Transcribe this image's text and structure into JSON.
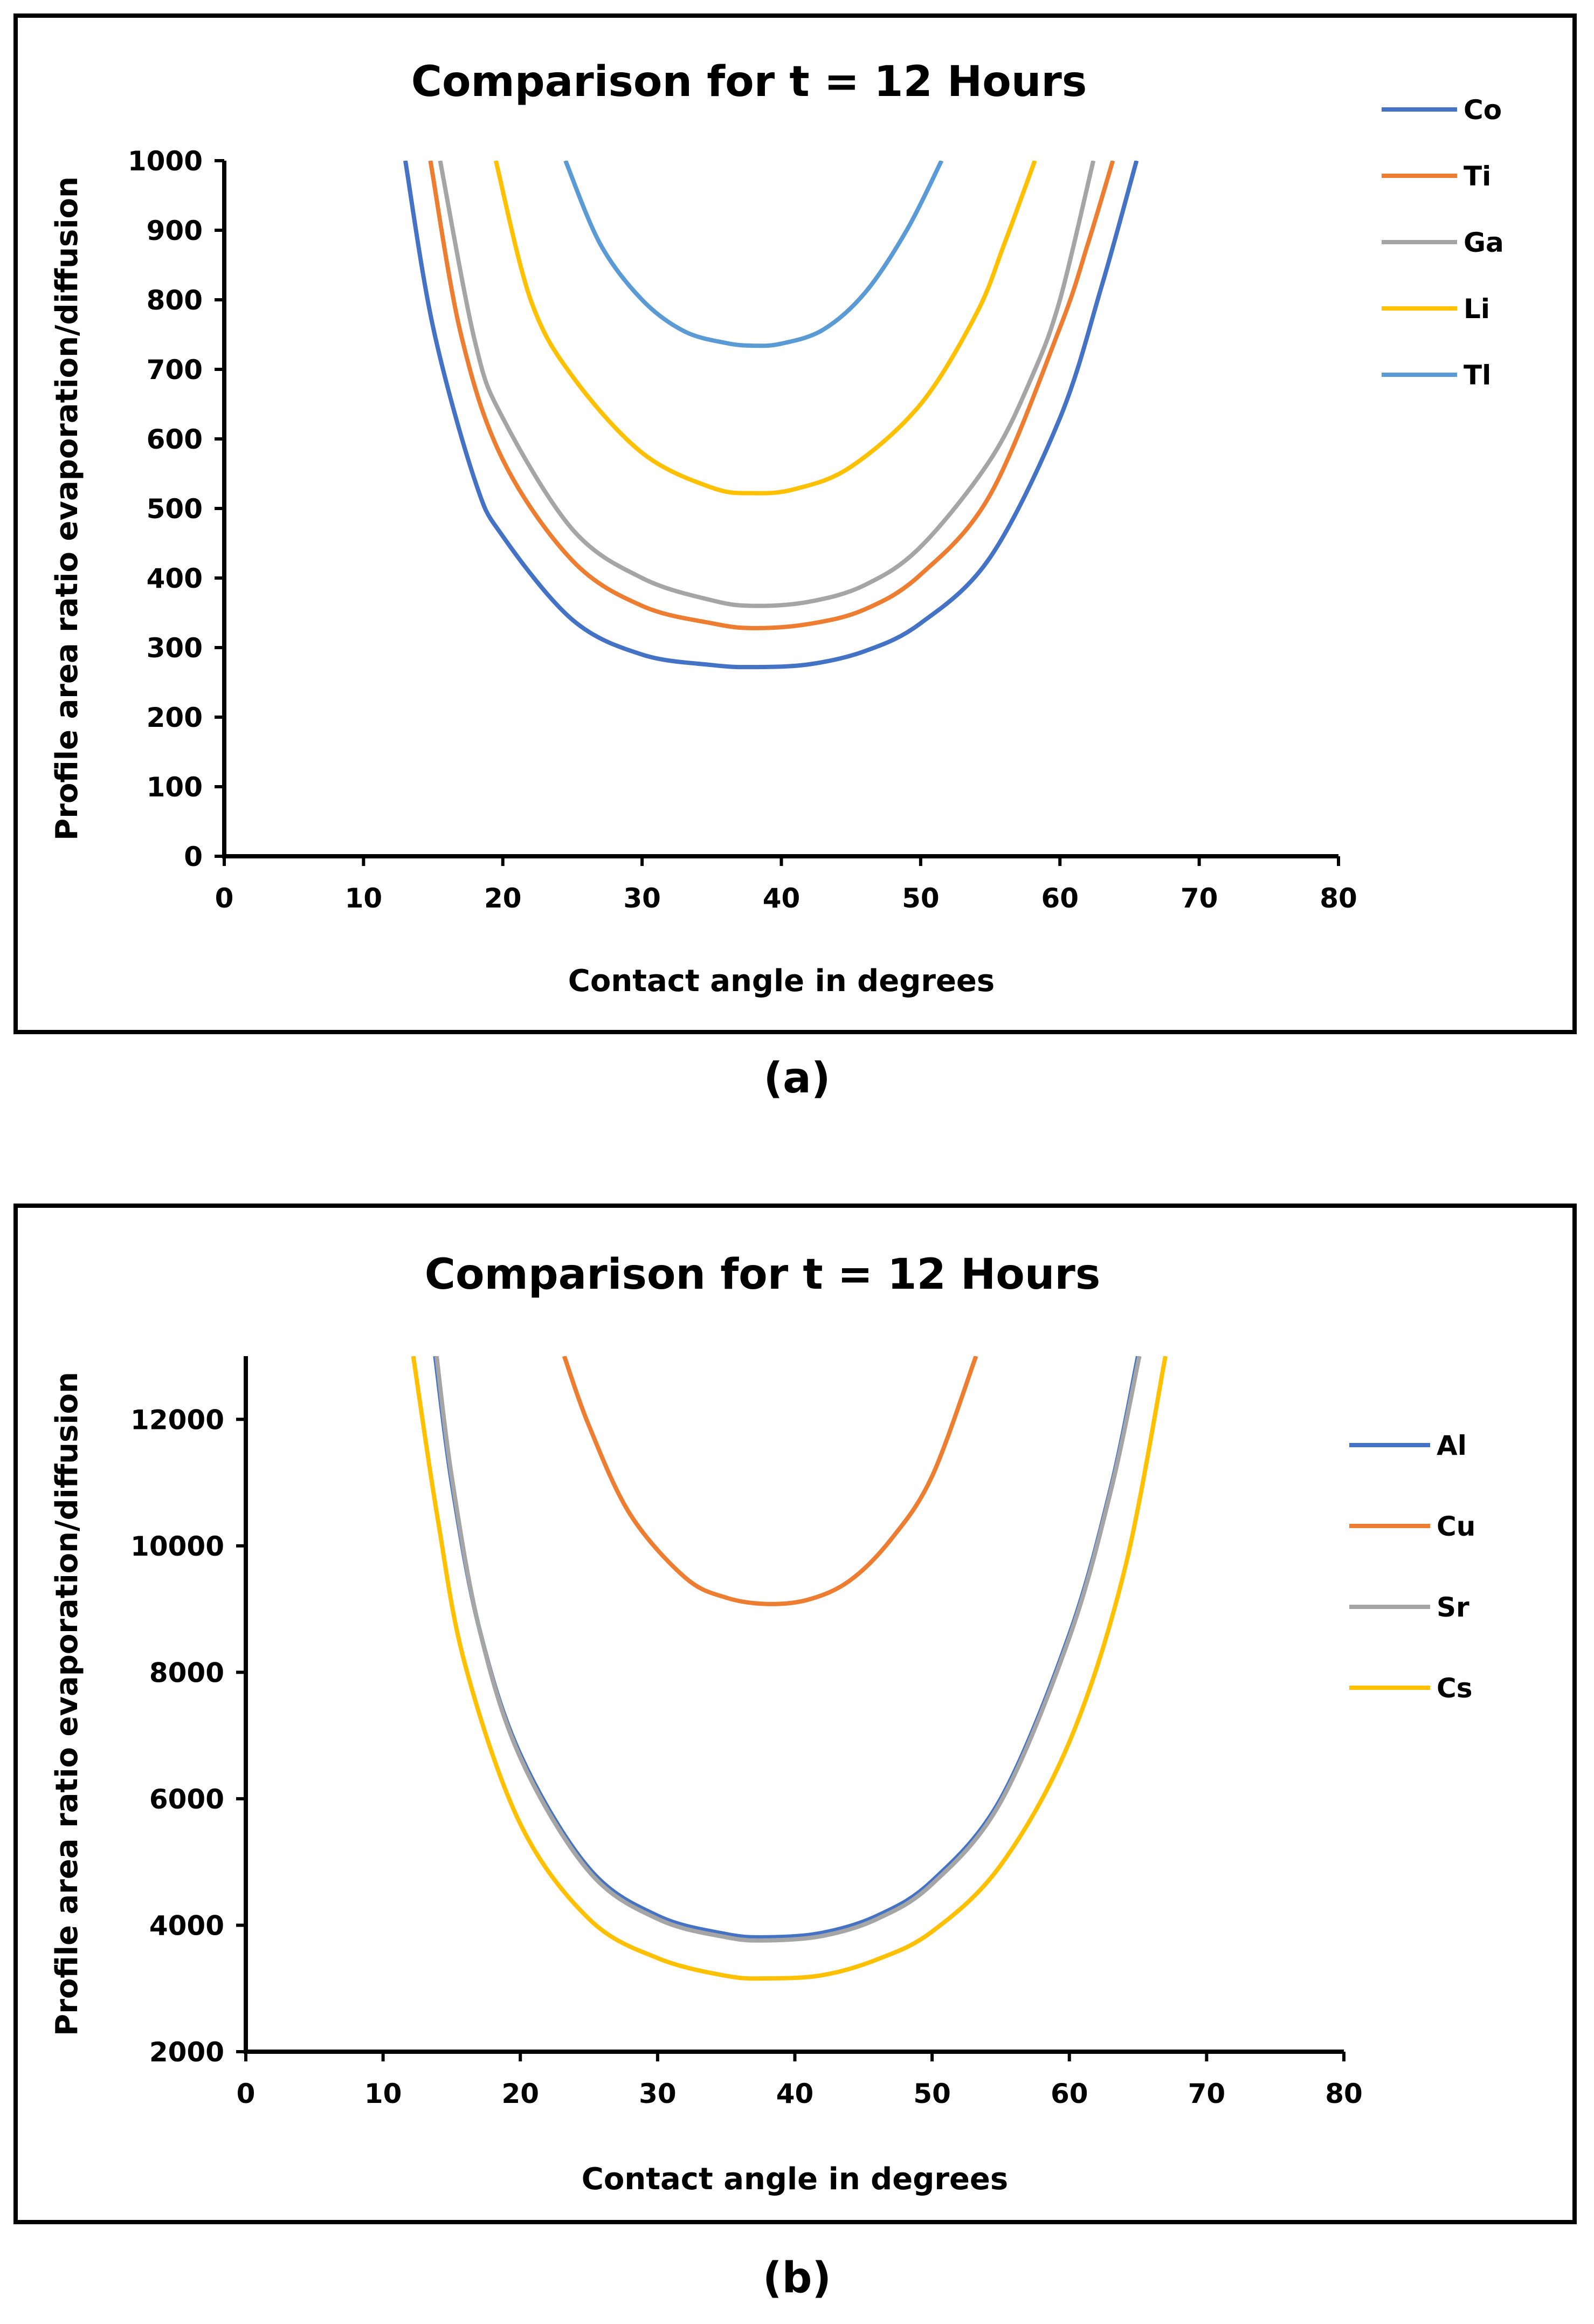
{
  "chart_data": [
    {
      "type": "line",
      "panel": "(a)",
      "title": "Comparison for t = 12 Hours",
      "xlabel": "Contact angle in degrees",
      "ylabel": "Profile area ratio evaporation/diffusion",
      "xlim": [
        0,
        80
      ],
      "ylim": [
        0,
        1000
      ],
      "xticks": [
        0,
        10,
        20,
        30,
        40,
        50,
        60,
        70,
        80
      ],
      "yticks": [
        0,
        100,
        200,
        300,
        400,
        500,
        600,
        700,
        800,
        900,
        1000
      ],
      "legend": "top-right",
      "grid": false,
      "series": [
        {
          "name": "Co",
          "color": "#4472C4",
          "x": [
            13,
            15,
            18,
            20,
            25,
            30,
            35,
            38,
            42,
            46,
            50,
            55,
            60,
            63,
            65.5
          ],
          "y": [
            1000,
            760,
            540,
            460,
            340,
            290,
            275,
            272,
            276,
            295,
            335,
            430,
            630,
            820,
            1000
          ]
        },
        {
          "name": "Ti",
          "color": "#ED7D31",
          "x": [
            14.8,
            17,
            20,
            25,
            30,
            35,
            38,
            42,
            46,
            50,
            55,
            60,
            62,
            63.8
          ],
          "y": [
            1000,
            750,
            570,
            425,
            360,
            335,
            328,
            334,
            355,
            405,
            520,
            760,
            880,
            1000
          ]
        },
        {
          "name": "Ga",
          "color": "#A5A5A5",
          "x": [
            15.5,
            18,
            20,
            25,
            30,
            35,
            38,
            42,
            46,
            50,
            55,
            58,
            60,
            62.4
          ],
          "y": [
            1000,
            740,
            630,
            470,
            400,
            368,
            360,
            366,
            390,
            445,
            570,
            690,
            800,
            1000
          ]
        },
        {
          "name": "Li",
          "color": "#FFC000",
          "x": [
            19.5,
            22,
            25,
            30,
            35,
            38,
            41,
            45,
            50,
            54,
            56,
            58.2
          ],
          "y": [
            1000,
            800,
            690,
            580,
            530,
            522,
            528,
            560,
            650,
            780,
            880,
            1000
          ]
        },
        {
          "name": "Tl",
          "color": "#5B9BD5",
          "x": [
            24.5,
            27,
            30,
            33,
            36,
            38,
            40,
            43,
            46,
            49,
            51.5
          ],
          "y": [
            1000,
            880,
            800,
            755,
            738,
            734,
            737,
            757,
            810,
            900,
            1000
          ]
        }
      ]
    },
    {
      "type": "line",
      "panel": "(b)",
      "title": "Comparison for t = 12 Hours",
      "xlabel": "Contact angle in degrees",
      "ylabel": "Profile area ratio evaporation/diffusion",
      "xlim": [
        0,
        80
      ],
      "ylim": [
        2000,
        13000
      ],
      "xticks": [
        0,
        10,
        20,
        30,
        40,
        50,
        60,
        70,
        80
      ],
      "yticks": [
        2000,
        4000,
        6000,
        8000,
        10000,
        12000
      ],
      "legend": "right",
      "grid": false,
      "series": [
        {
          "name": "Al",
          "color": "#4472C4",
          "x": [
            13.8,
            15,
            17,
            20,
            25,
            30,
            35,
            38,
            42,
            46,
            50,
            55,
            60,
            63,
            65
          ],
          "y": [
            13000,
            11000,
            8700,
            6700,
            4900,
            4150,
            3860,
            3810,
            3880,
            4150,
            4700,
            6000,
            8600,
            10900,
            13000
          ]
        },
        {
          "name": "Cu",
          "color": "#ED7D31",
          "x": [
            23.2,
            25,
            28,
            32,
            35,
            38,
            41,
            44,
            47,
            50,
            53.2
          ],
          "y": [
            13000,
            11900,
            10500,
            9500,
            9180,
            9080,
            9150,
            9450,
            10100,
            11100,
            13000
          ]
        },
        {
          "name": "Sr",
          "color": "#A5A5A5",
          "x": [
            13.9,
            15,
            17,
            20,
            25,
            30,
            35,
            38,
            42,
            46,
            50,
            55,
            60,
            63,
            65.1
          ],
          "y": [
            13000,
            11100,
            8700,
            6650,
            4850,
            4100,
            3810,
            3760,
            3830,
            4100,
            4650,
            5950,
            8550,
            10850,
            13000
          ]
        },
        {
          "name": "Cs",
          "color": "#FFC000",
          "x": [
            12.2,
            14,
            16,
            20,
            25,
            30,
            35,
            38,
            42,
            46,
            50,
            55,
            60,
            64,
            67
          ],
          "y": [
            13000,
            10400,
            8100,
            5600,
            4100,
            3480,
            3200,
            3160,
            3210,
            3460,
            3900,
            4950,
            6900,
            9600,
            13000
          ]
        }
      ]
    }
  ],
  "captions": {
    "a": "(a)",
    "b": "(b)"
  }
}
